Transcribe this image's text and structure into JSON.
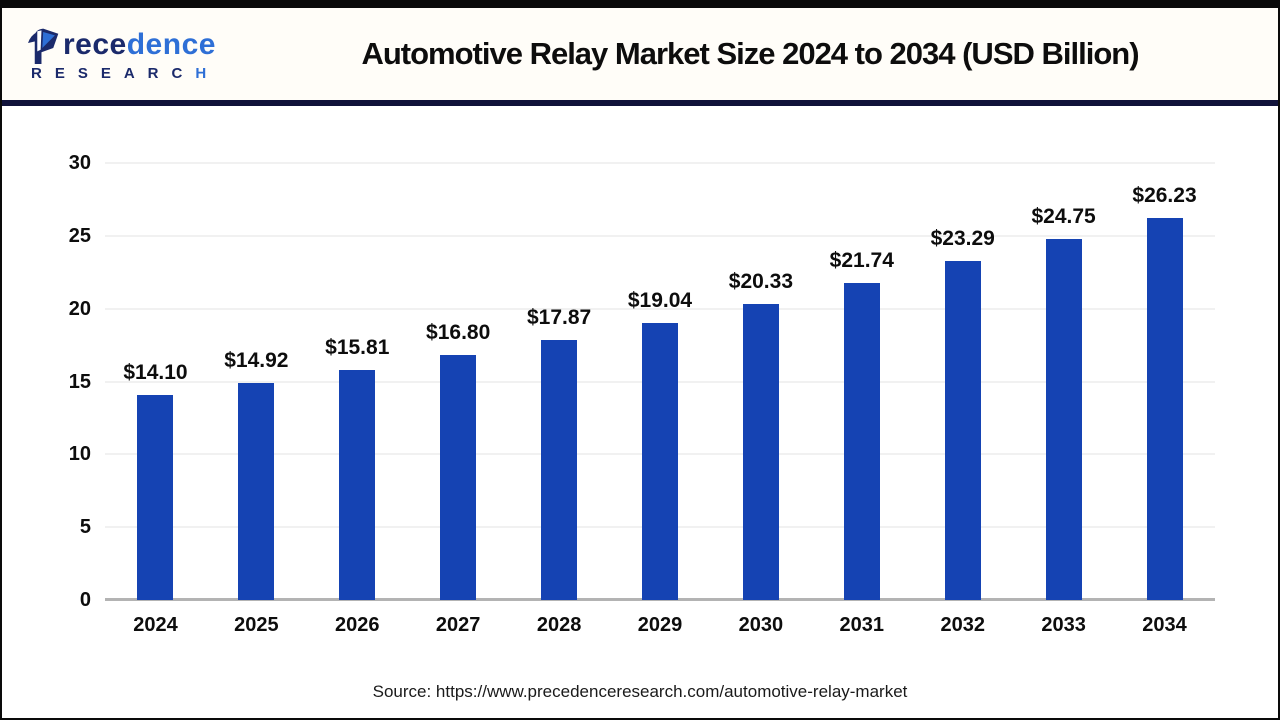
{
  "logo": {
    "brand_rest_dark": "rece",
    "brand_rest_light": "dence",
    "research_dark": "RESEARC",
    "research_light": "H"
  },
  "chart_data": {
    "type": "bar",
    "title": "Automotive Relay Market Size 2024 to 2034 (USD Billion)",
    "unit": "USD Billion",
    "categories": [
      "2024",
      "2025",
      "2026",
      "2027",
      "2028",
      "2029",
      "2030",
      "2031",
      "2032",
      "2033",
      "2034"
    ],
    "values": [
      14.1,
      14.92,
      15.81,
      16.8,
      17.87,
      19.04,
      20.33,
      21.74,
      23.29,
      24.75,
      26.23
    ],
    "value_labels": [
      "$14.10",
      "$14.92",
      "$15.81",
      "$16.80",
      "$17.87",
      "$19.04",
      "$20.33",
      "$21.74",
      "$23.29",
      "$24.75",
      "$26.23"
    ],
    "ylim": [
      0,
      30
    ],
    "yticks": [
      0,
      5,
      10,
      15,
      20,
      25,
      30
    ],
    "grid": true,
    "legend": "none"
  },
  "footer": {
    "source": "Source: https://www.precedenceresearch.com/automotive-relay-market"
  },
  "colors": {
    "bar": "#1543b3",
    "logo_dark": "#1b2a6b",
    "logo_light": "#2e6fd6",
    "divider": "#10123a",
    "grid": "#f1f1f1",
    "axis_line": "#b3b3b3",
    "top_bar": "#0a0a0a",
    "header_bg": "#fffdf8"
  }
}
